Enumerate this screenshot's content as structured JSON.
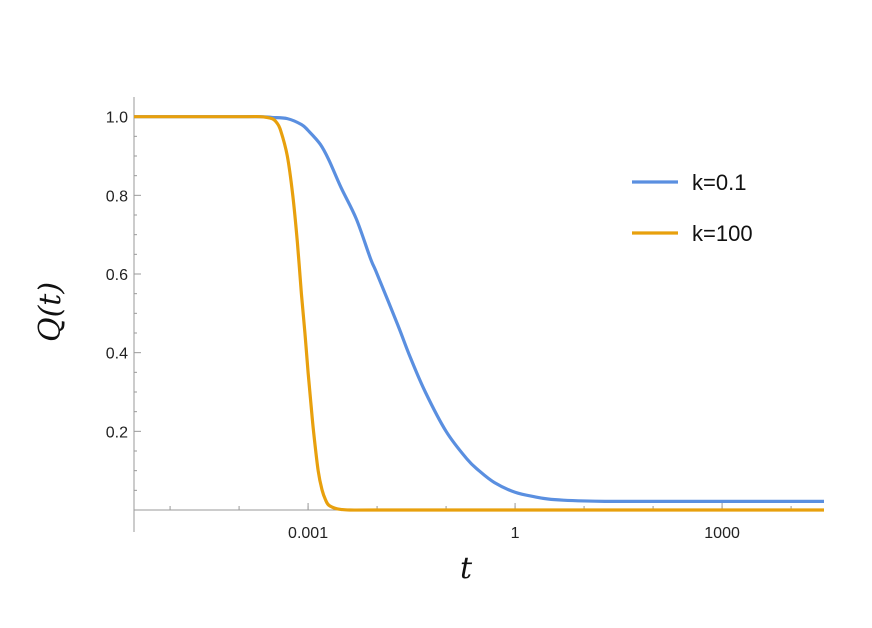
{
  "chart_data": {
    "type": "line",
    "xscale": "log",
    "xlabel": "t",
    "ylabel": "Q(t)",
    "xlim": [
      3e-06,
      30000
    ],
    "ylim": [
      0,
      1.05
    ],
    "xticks": [
      {
        "value": 0.001,
        "label": "0.001"
      },
      {
        "value": 1,
        "label": "1"
      },
      {
        "value": 1000,
        "label": "1000"
      }
    ],
    "yticks": [
      {
        "value": 0.2,
        "label": "0.2"
      },
      {
        "value": 0.4,
        "label": "0.4"
      },
      {
        "value": 0.6,
        "label": "0.6"
      },
      {
        "value": 0.8,
        "label": "0.8"
      },
      {
        "value": 1.0,
        "label": "1.0"
      }
    ],
    "legend_position": "top-right",
    "series": [
      {
        "name": "k=0.1",
        "color": "#5a8fe0",
        "x": [
          3e-06,
          0.0001,
          0.0002,
          0.0003,
          0.0005,
          0.0008,
          0.001,
          0.0015,
          0.002,
          0.003,
          0.005,
          0.008,
          0.01,
          0.02,
          0.03,
          0.05,
          0.1,
          0.2,
          0.3,
          0.5,
          1,
          2,
          3,
          5,
          10,
          20,
          50,
          100,
          1000,
          30000
        ],
        "y": [
          1.0,
          1.0,
          1.0,
          0.998,
          0.995,
          0.98,
          0.965,
          0.93,
          0.89,
          0.82,
          0.74,
          0.64,
          0.6,
          0.47,
          0.39,
          0.3,
          0.2,
          0.13,
          0.1,
          0.07,
          0.045,
          0.033,
          0.028,
          0.025,
          0.023,
          0.022,
          0.022,
          0.022,
          0.022,
          0.022
        ]
      },
      {
        "name": "k=100",
        "color": "#e8a00d",
        "x": [
          3e-06,
          0.0001,
          0.0002,
          0.0003,
          0.00035,
          0.0004,
          0.0005,
          0.0006,
          0.0007,
          0.0008,
          0.0009,
          0.001,
          0.0011,
          0.0012,
          0.0014,
          0.0016,
          0.0018,
          0.002,
          0.0025,
          0.003,
          0.004,
          0.01,
          1,
          30000
        ],
        "y": [
          1.0,
          1.0,
          1.0,
          0.995,
          0.985,
          0.965,
          0.9,
          0.8,
          0.68,
          0.55,
          0.45,
          0.35,
          0.27,
          0.2,
          0.1,
          0.05,
          0.025,
          0.012,
          0.004,
          0.0015,
          0.0,
          0.0,
          0.0,
          0.0
        ]
      }
    ]
  }
}
